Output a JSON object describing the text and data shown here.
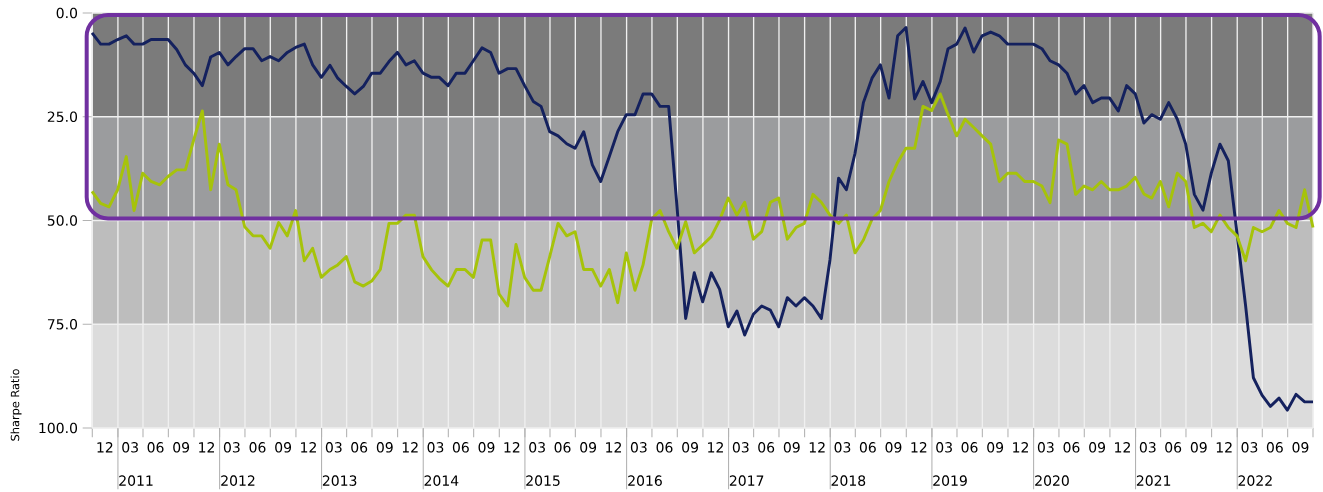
{
  "chart_data": {
    "type": "line",
    "ylabel": "Sharpe Ratio",
    "x": [
      "2010-09-30",
      "2010-10-31",
      "2010-11-30",
      "2010-12-31",
      "2011-01-31",
      "2011-02-28",
      "2011-03-31",
      "2011-04-30",
      "2011-05-31",
      "2011-06-30",
      "2011-07-31",
      "2011-08-31",
      "2011-09-30",
      "2011-10-31",
      "2011-11-30",
      "2011-12-31",
      "2012-01-31",
      "2012-02-29",
      "2012-03-31",
      "2012-04-30",
      "2012-05-31",
      "2012-06-30",
      "2012-07-31",
      "2012-08-31",
      "2012-09-30",
      "2012-10-31",
      "2012-11-30",
      "2012-12-31",
      "2013-01-31",
      "2013-02-28",
      "2013-03-31",
      "2013-04-30",
      "2013-05-31",
      "2013-06-30",
      "2013-07-31",
      "2013-08-31",
      "2013-09-30",
      "2013-10-31",
      "2013-11-30",
      "2013-12-31",
      "2014-01-31",
      "2014-02-28",
      "2014-03-31",
      "2014-04-30",
      "2014-05-31",
      "2014-06-30",
      "2014-07-31",
      "2014-08-31",
      "2014-09-30",
      "2014-10-31",
      "2014-11-30",
      "2014-12-31",
      "2015-01-31",
      "2015-02-28",
      "2015-03-31",
      "2015-04-30",
      "2015-05-31",
      "2015-06-30",
      "2015-07-31",
      "2015-08-31",
      "2015-09-30",
      "2015-10-31",
      "2015-11-30",
      "2015-12-31",
      "2016-01-31",
      "2016-02-29",
      "2016-03-31",
      "2016-04-30",
      "2016-05-31",
      "2016-06-30",
      "2016-07-31",
      "2016-08-31",
      "2016-09-30",
      "2016-10-31",
      "2016-11-30",
      "2016-12-31",
      "2017-01-31",
      "2017-02-28",
      "2017-03-31",
      "2017-04-30",
      "2017-05-31",
      "2017-06-30",
      "2017-07-31",
      "2017-08-31",
      "2017-09-30",
      "2017-10-31",
      "2017-11-30",
      "2017-12-31",
      "2018-01-31",
      "2018-02-28",
      "2018-03-31",
      "2018-04-30",
      "2018-05-31",
      "2018-06-30",
      "2018-07-31",
      "2018-08-31",
      "2018-09-30",
      "2018-10-31",
      "2018-11-30",
      "2018-12-31",
      "2019-01-31",
      "2019-02-28",
      "2019-03-31",
      "2019-04-30",
      "2019-05-31",
      "2019-06-30",
      "2019-07-31",
      "2019-08-31",
      "2019-09-30",
      "2019-10-31",
      "2019-11-30",
      "2019-12-31",
      "2020-01-31",
      "2020-02-29",
      "2020-03-31",
      "2020-04-30",
      "2020-05-31",
      "2020-06-30",
      "2020-07-31",
      "2020-08-31",
      "2020-09-30",
      "2020-10-31",
      "2020-11-30",
      "2020-12-31",
      "2021-01-31",
      "2021-02-28",
      "2021-03-31",
      "2021-04-30",
      "2021-05-31",
      "2021-06-30",
      "2021-07-31",
      "2021-08-31",
      "2021-09-30",
      "2021-10-31",
      "2021-11-30",
      "2021-12-31",
      "2022-01-31",
      "2022-02-28",
      "2022-03-31",
      "2022-04-30",
      "2022-05-31",
      "2022-06-30",
      "2022-07-31",
      "2022-08-31",
      "2022-09-30"
    ],
    "series": [
      {
        "color": "#14215e",
        "values": [
          4.8,
          7.5,
          7.5,
          6.4,
          5.5,
          7.5,
          7.5,
          6.4,
          6.4,
          6.4,
          8.8,
          12.5,
          14.5,
          17.5,
          10.6,
          9.5,
          12.5,
          10.5,
          8.6,
          8.6,
          11.5,
          10.5,
          11.5,
          9.5,
          8.3,
          7.5,
          12.5,
          15.5,
          12.6,
          15.7,
          17.7,
          19.5,
          17.7,
          14.5,
          14.5,
          11.7,
          9.5,
          12.5,
          11.5,
          14.5,
          15.5,
          15.5,
          17.5,
          14.5,
          14.5,
          11.5,
          8.4,
          9.5,
          14.5,
          13.4,
          13.4,
          17.5,
          21.3,
          22.5,
          28.6,
          29.6,
          31.5,
          32.6,
          28.6,
          36.6,
          40.6,
          34.6,
          28.6,
          24.5,
          24.5,
          19.5,
          19.5,
          22.5,
          22.5,
          46.7,
          73.6,
          62.6,
          69.6,
          62.6,
          66.6,
          75.6,
          71.8,
          77.6,
          72.6,
          70.6,
          71.6,
          75.6,
          68.6,
          70.6,
          68.6,
          70.6,
          73.6,
          59.5,
          39.8,
          42.6,
          33.8,
          21.6,
          15.7,
          12.5,
          20.5,
          5.5,
          3.5,
          20.7,
          16.5,
          21.6,
          16.5,
          8.6,
          7.5,
          3.6,
          9.4,
          5.5,
          4.6,
          5.5,
          7.5,
          7.5,
          7.5,
          7.5,
          8.6,
          11.5,
          12.5,
          14.5,
          19.5,
          17.5,
          21.6,
          20.5,
          20.5,
          23.6,
          17.5,
          19.5,
          26.5,
          24.5,
          25.6,
          21.6,
          25.6,
          31.6,
          43.7,
          47.5,
          38.6,
          31.6,
          35.6,
          53,
          70.5,
          87.9,
          92.1,
          94.8,
          92.8,
          95.7,
          91.9,
          93.7,
          93.7
        ]
      },
      {
        "color": "#a6c30a",
        "values": [
          43,
          45.9,
          46.7,
          42.6,
          34.6,
          47.6,
          38.6,
          40.6,
          41.4,
          39.4,
          37.8,
          37.8,
          30.6,
          23.6,
          42.6,
          31.6,
          41.4,
          42.6,
          51.5,
          53.7,
          53.7,
          56.7,
          50.5,
          53.7,
          47.6,
          59.7,
          56.7,
          63.7,
          61.8,
          60.7,
          58.7,
          64.8,
          65.8,
          64.6,
          61.8,
          50.7,
          50.7,
          48.7,
          48.7,
          58.7,
          61.9,
          64,
          65.8,
          61.8,
          61.8,
          63.7,
          54.7,
          54.7,
          67.7,
          70.6,
          55.8,
          63.7,
          66.8,
          66.8,
          58.7,
          50.7,
          53.7,
          52.7,
          61.8,
          61.8,
          65.8,
          61.8,
          69.8,
          57.8,
          66.8,
          60.7,
          49.7,
          47.6,
          52.7,
          56.7,
          50.3,
          57.8,
          55.9,
          53.9,
          49.9,
          44.6,
          48.7,
          45.6,
          54.5,
          52.7,
          45.6,
          44.6,
          54.5,
          51.7,
          50.7,
          43.7,
          45.6,
          48.7,
          50.7,
          48.7,
          57.8,
          54.7,
          49.7,
          47.6,
          40.6,
          36,
          32.6,
          32.6,
          22.5,
          23.5,
          19.5,
          24.5,
          29.6,
          25.6,
          27.6,
          29.6,
          31.6,
          40.6,
          38.6,
          38.6,
          40.6,
          40.6,
          41.7,
          45.7,
          30.6,
          31.6,
          43.7,
          41.7,
          42.6,
          40.6,
          42.6,
          42.6,
          41.7,
          39.6,
          43.6,
          44.6,
          40.6,
          46.7,
          38.6,
          40.6,
          51.7,
          50.7,
          52.7,
          48.7,
          51.7,
          53.7,
          59.7,
          51.7,
          52.7,
          51.7,
          47.6,
          50.7,
          51.7,
          42.6,
          51.7
        ]
      }
    ],
    "xlim": [
      "2010-09-30",
      "2022-09-30"
    ],
    "xticks": [
      {
        "value": "2010-10-01",
        "label": null
      },
      {
        "value": "2010-11-15",
        "label": "12"
      },
      {
        "value": "2011-01-01",
        "label": null
      },
      {
        "value": "2011-02-14",
        "label": "03"
      },
      {
        "value": "2011-04-01",
        "label": null
      },
      {
        "value": "2011-05-16",
        "label": "06"
      },
      {
        "value": "2011-07-01",
        "label": null
      },
      {
        "value": "2011-08-16",
        "label": "09"
      },
      {
        "value": "2011-10-01",
        "label": null
      },
      {
        "value": "2011-11-15",
        "label": "12"
      },
      {
        "value": "2012-01-01",
        "label": null
      },
      {
        "value": "2012-02-14",
        "label": "03"
      },
      {
        "value": "2012-04-01",
        "label": null
      },
      {
        "value": "2012-05-16",
        "label": "06"
      },
      {
        "value": "2012-07-01",
        "label": null
      },
      {
        "value": "2012-08-16",
        "label": "09"
      },
      {
        "value": "2012-10-01",
        "label": null
      },
      {
        "value": "2012-11-15",
        "label": "12"
      },
      {
        "value": "2013-01-01",
        "label": null
      },
      {
        "value": "2013-02-14",
        "label": "03"
      },
      {
        "value": "2013-04-01",
        "label": null
      },
      {
        "value": "2013-05-16",
        "label": "06"
      },
      {
        "value": "2013-07-01",
        "label": null
      },
      {
        "value": "2013-08-16",
        "label": "09"
      },
      {
        "value": "2013-10-01",
        "label": null
      },
      {
        "value": "2013-11-15",
        "label": "12"
      },
      {
        "value": "2014-01-01",
        "label": null
      },
      {
        "value": "2014-02-14",
        "label": "03"
      },
      {
        "value": "2014-04-01",
        "label": null
      },
      {
        "value": "2014-05-16",
        "label": "06"
      },
      {
        "value": "2014-07-01",
        "label": null
      },
      {
        "value": "2014-08-16",
        "label": "09"
      },
      {
        "value": "2014-10-01",
        "label": null
      },
      {
        "value": "2014-11-15",
        "label": "12"
      },
      {
        "value": "2015-01-01",
        "label": null
      },
      {
        "value": "2015-02-14",
        "label": "03"
      },
      {
        "value": "2015-04-01",
        "label": null
      },
      {
        "value": "2015-05-16",
        "label": "06"
      },
      {
        "value": "2015-07-01",
        "label": null
      },
      {
        "value": "2015-08-16",
        "label": "09"
      },
      {
        "value": "2015-10-01",
        "label": null
      },
      {
        "value": "2015-11-15",
        "label": "12"
      },
      {
        "value": "2016-01-01",
        "label": null
      },
      {
        "value": "2016-02-14",
        "label": "03"
      },
      {
        "value": "2016-04-01",
        "label": null
      },
      {
        "value": "2016-05-16",
        "label": "06"
      },
      {
        "value": "2016-07-01",
        "label": null
      },
      {
        "value": "2016-08-16",
        "label": "09"
      },
      {
        "value": "2016-10-01",
        "label": null
      },
      {
        "value": "2016-11-15",
        "label": "12"
      },
      {
        "value": "2017-01-01",
        "label": null
      },
      {
        "value": "2017-02-14",
        "label": "03"
      },
      {
        "value": "2017-04-01",
        "label": null
      },
      {
        "value": "2017-05-16",
        "label": "06"
      },
      {
        "value": "2017-07-01",
        "label": null
      },
      {
        "value": "2017-08-16",
        "label": "09"
      },
      {
        "value": "2017-10-01",
        "label": null
      },
      {
        "value": "2017-11-15",
        "label": "12"
      },
      {
        "value": "2018-01-01",
        "label": null
      },
      {
        "value": "2018-02-14",
        "label": "03"
      },
      {
        "value": "2018-04-01",
        "label": null
      },
      {
        "value": "2018-05-16",
        "label": "06"
      },
      {
        "value": "2018-07-01",
        "label": null
      },
      {
        "value": "2018-08-16",
        "label": "09"
      },
      {
        "value": "2018-10-01",
        "label": null
      },
      {
        "value": "2018-11-15",
        "label": "12"
      },
      {
        "value": "2019-01-01",
        "label": null
      },
      {
        "value": "2019-02-14",
        "label": "03"
      },
      {
        "value": "2019-04-01",
        "label": null
      },
      {
        "value": "2019-05-16",
        "label": "06"
      },
      {
        "value": "2019-07-01",
        "label": null
      },
      {
        "value": "2019-08-16",
        "label": "09"
      },
      {
        "value": "2019-10-01",
        "label": null
      },
      {
        "value": "2019-11-15",
        "label": "12"
      },
      {
        "value": "2020-01-01",
        "label": null
      },
      {
        "value": "2020-02-14",
        "label": "03"
      },
      {
        "value": "2020-04-01",
        "label": null
      },
      {
        "value": "2020-05-16",
        "label": "06"
      },
      {
        "value": "2020-07-01",
        "label": null
      },
      {
        "value": "2020-08-16",
        "label": "09"
      },
      {
        "value": "2020-10-01",
        "label": null
      },
      {
        "value": "2020-11-15",
        "label": "12"
      },
      {
        "value": "2021-01-01",
        "label": null
      },
      {
        "value": "2021-02-14",
        "label": "03"
      },
      {
        "value": "2021-04-01",
        "label": null
      },
      {
        "value": "2021-05-16",
        "label": "06"
      },
      {
        "value": "2021-07-01",
        "label": null
      },
      {
        "value": "2021-08-16",
        "label": "09"
      },
      {
        "value": "2021-10-01",
        "label": null
      },
      {
        "value": "2021-11-15",
        "label": "12"
      },
      {
        "value": "2022-01-01",
        "label": null
      },
      {
        "value": "2022-02-14",
        "label": "03"
      },
      {
        "value": "2022-04-01",
        "label": null
      },
      {
        "value": "2022-05-16",
        "label": "06"
      },
      {
        "value": "2022-07-01",
        "label": null
      },
      {
        "value": "2022-08-16",
        "label": "09"
      },
      {
        "value": "2022-09-30",
        "label": null
      }
    ],
    "x2lim": [
      "2010-09-30",
      "2022-09-30"
    ],
    "x2ticks": [
      {
        "value": "2011-01-01",
        "label": null
      },
      {
        "value": "2011-03-07",
        "label": "2011"
      },
      {
        "value": "2012-01-01",
        "label": null
      },
      {
        "value": "2012-03-07",
        "label": "2012"
      },
      {
        "value": "2013-01-01",
        "label": null
      },
      {
        "value": "2013-03-07",
        "label": "2013"
      },
      {
        "value": "2014-01-01",
        "label": null
      },
      {
        "value": "2014-03-07",
        "label": "2014"
      },
      {
        "value": "2015-01-01",
        "label": null
      },
      {
        "value": "2015-03-07",
        "label": "2015"
      },
      {
        "value": "2016-01-01",
        "label": null
      },
      {
        "value": "2016-03-07",
        "label": "2016"
      },
      {
        "value": "2017-01-01",
        "label": null
      },
      {
        "value": "2017-03-07",
        "label": "2017"
      },
      {
        "value": "2018-01-01",
        "label": null
      },
      {
        "value": "2018-03-07",
        "label": "2018"
      },
      {
        "value": "2019-01-01",
        "label": null
      },
      {
        "value": "2019-03-07",
        "label": "2019"
      },
      {
        "value": "2020-01-01",
        "label": null
      },
      {
        "value": "2020-03-07",
        "label": "2020"
      },
      {
        "value": "2021-01-01",
        "label": null
      },
      {
        "value": "2021-03-07",
        "label": "2021"
      },
      {
        "value": "2022-01-01",
        "label": null
      },
      {
        "value": "2022-03-07",
        "label": "2022"
      }
    ],
    "ylim": [
      100,
      0
    ],
    "yticks": [
      {
        "value": 0,
        "label": "0.0"
      },
      {
        "value": 25,
        "label": "25.0"
      },
      {
        "value": 50,
        "label": "50.0"
      },
      {
        "value": 75,
        "label": "75.0"
      },
      {
        "value": 100,
        "label": "100.0"
      }
    ],
    "bands": [
      {
        "axis": "y",
        "from": 0,
        "to": 25,
        "color": "#7b7b7b"
      },
      {
        "axis": "y",
        "from": 25,
        "to": 50,
        "color": "#9b9c9e"
      },
      {
        "axis": "y",
        "from": 50,
        "to": 75,
        "color": "#bdbdbd"
      },
      {
        "axis": "y",
        "from": 75,
        "to": 100,
        "color": "#dcdcdc"
      }
    ],
    "grid": true
  }
}
